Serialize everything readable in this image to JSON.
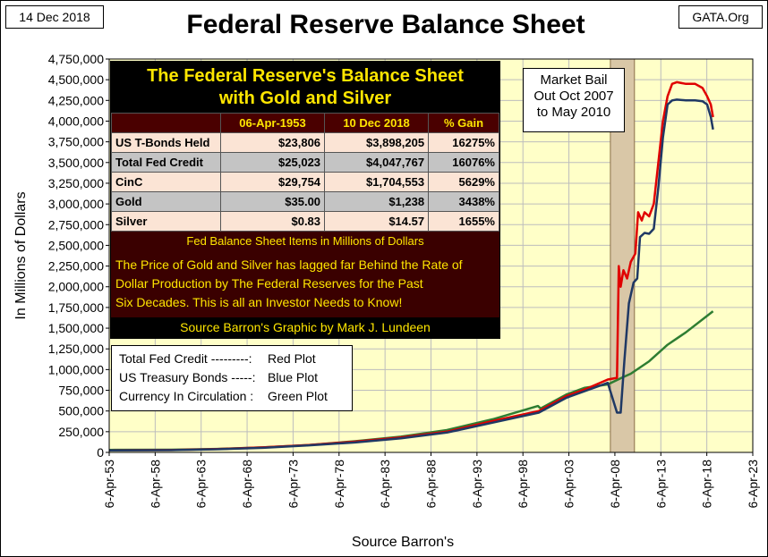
{
  "header": {
    "date": "14 Dec 2018",
    "title": "Federal Reserve Balance Sheet",
    "source_site": "GATA.Org"
  },
  "annotation": "Market Bail\nOut Oct 2007\nto May 2010",
  "info_box": {
    "title_line1": "The Federal Reserve's Balance Sheet",
    "title_line2": "with Gold and Silver",
    "columns": [
      "",
      "06-Apr-1953",
      "10 Dec 2018",
      "% Gain"
    ],
    "rows": [
      {
        "label": "US T-Bonds Held",
        "v1953": "$23,806",
        "v2018": "$3,898,205",
        "gain": "16275%"
      },
      {
        "label": "Total Fed Credit",
        "v1953": "$25,023",
        "v2018": "$4,047,767",
        "gain": "16076%"
      },
      {
        "label": "CinC",
        "v1953": "$29,754",
        "v2018": "$1,704,553",
        "gain": "5629%"
      },
      {
        "label": "Gold",
        "v1953": "$35.00",
        "v2018": "$1,238",
        "gain": "3438%"
      },
      {
        "label": "Silver",
        "v1953": "$0.83",
        "v2018": "$14.57",
        "gain": "1655%"
      }
    ],
    "note": "Fed Balance Sheet Items in Millions of Dollars",
    "paragraph_line1": "The Price of Gold and Silver has lagged far Behind the Rate of",
    "paragraph_line2": "Dollar Production by The Federal Reserves for the Past",
    "paragraph_line3": "Six Decades.  This is all an Investor Needs to Know!",
    "source": "Source Barron's    Graphic by Mark J. Lundeen"
  },
  "legend": [
    {
      "name": "Total Fed Credit ---------:",
      "desc": "Red Plot"
    },
    {
      "name": "US Treasury Bonds -----:",
      "desc": "Blue Plot"
    },
    {
      "name": "Currency In Circulation :",
      "desc": "Green Plot"
    }
  ],
  "colors": {
    "plot_bg": "#ffffc8",
    "grid": "#bdbdbd",
    "red": "#e00000",
    "blue": "#1f3864",
    "green": "#2e7d32",
    "highlight": "#d9c7a7"
  },
  "chart_data": {
    "type": "line",
    "xlabel": "Source Barron's",
    "ylabel": "In Millions of Dollars",
    "xlim": [
      1953.27,
      2023.27
    ],
    "ylim": [
      0,
      4750000
    ],
    "x_ticks": [
      1953.27,
      1958.27,
      1963.27,
      1968.27,
      1973.27,
      1978.27,
      1983.27,
      1988.27,
      1993.27,
      1998.27,
      2003.27,
      2008.27,
      2013.27,
      2018.27,
      2023.27
    ],
    "x_tick_labels": [
      "6-Apr-53",
      "6-Apr-58",
      "6-Apr-63",
      "6-Apr-68",
      "6-Apr-73",
      "6-Apr-78",
      "6-Apr-83",
      "6-Apr-88",
      "6-Apr-93",
      "6-Apr-98",
      "6-Apr-03",
      "6-Apr-08",
      "6-Apr-13",
      "6-Apr-18",
      "6-Apr-23"
    ],
    "y_ticks": [
      0,
      250000,
      500000,
      750000,
      1000000,
      1250000,
      1500000,
      1750000,
      2000000,
      2250000,
      2500000,
      2750000,
      3000000,
      3250000,
      3500000,
      3750000,
      4000000,
      4250000,
      4500000,
      4750000
    ],
    "y_tick_labels": [
      "0",
      "250,000",
      "500,000",
      "750,000",
      "1,000,000",
      "1,250,000",
      "1,500,000",
      "1,750,000",
      "2,000,000",
      "2,250,000",
      "2,500,000",
      "2,750,000",
      "3,000,000",
      "3,250,000",
      "3,500,000",
      "3,750,000",
      "4,000,000",
      "4,250,000",
      "4,500,000",
      "4,750,000"
    ],
    "shaded_period": [
      2007.78,
      2010.4
    ],
    "series": [
      {
        "name": "Total Fed Credit",
        "color": "#e00000",
        "x": [
          1953.3,
          1960,
          1965,
          1970,
          1975,
          1980,
          1985,
          1990,
          1995,
          2000,
          2003,
          2005,
          2007.5,
          2008.5,
          2008.7,
          2008.9,
          2009.2,
          2009.6,
          2010.0,
          2010.5,
          2010.8,
          2011.2,
          2011.5,
          2012.0,
          2012.5,
          2013.0,
          2013.5,
          2014.0,
          2014.5,
          2015.0,
          2016.0,
          2017.0,
          2017.8,
          2018.3,
          2018.7,
          2018.95
        ],
        "y": [
          25023,
          28000,
          40000,
          60000,
          90000,
          130000,
          180000,
          250000,
          380000,
          500000,
          680000,
          760000,
          880000,
          900000,
          2250000,
          2000000,
          2200000,
          2100000,
          2300000,
          2400000,
          2900000,
          2800000,
          2900000,
          2850000,
          3000000,
          3500000,
          4000000,
          4300000,
          4450000,
          4470000,
          4450000,
          4450000,
          4400000,
          4300000,
          4200000,
          4047767
        ]
      },
      {
        "name": "US Treasury Bonds",
        "color": "#1f3864",
        "x": [
          1953.3,
          1960,
          1965,
          1970,
          1975,
          1980,
          1985,
          1990,
          1995,
          2000,
          2003,
          2005,
          2007.5,
          2008.5,
          2008.9,
          2009.3,
          2009.8,
          2010.3,
          2010.7,
          2011.0,
          2011.5,
          2012.0,
          2012.5,
          2013.0,
          2013.5,
          2014.0,
          2014.5,
          2015.0,
          2016.0,
          2017.0,
          2017.8,
          2018.3,
          2018.7,
          2018.95
        ],
        "y": [
          23806,
          27000,
          38000,
          55000,
          85000,
          120000,
          170000,
          240000,
          360000,
          480000,
          660000,
          740000,
          840000,
          480000,
          480000,
          1100000,
          1800000,
          2050000,
          2100000,
          2600000,
          2650000,
          2640000,
          2700000,
          3200000,
          3800000,
          4200000,
          4250000,
          4260000,
          4250000,
          4250000,
          4240000,
          4200000,
          4050000,
          3898205
        ]
      },
      {
        "name": "Currency In Circulation",
        "color": "#2e7d32",
        "x": [
          1953.3,
          1960,
          1965,
          1970,
          1975,
          1980,
          1985,
          1990,
          1995,
          1999.9,
          2000.2,
          2003,
          2005,
          2007.5,
          2009,
          2010,
          2012,
          2014,
          2016,
          2018.95
        ],
        "y": [
          29754,
          32000,
          42000,
          60000,
          90000,
          135000,
          190000,
          270000,
          400000,
          560000,
          530000,
          700000,
          780000,
          820000,
          900000,
          950000,
          1100000,
          1300000,
          1450000,
          1704553
        ]
      }
    ]
  }
}
